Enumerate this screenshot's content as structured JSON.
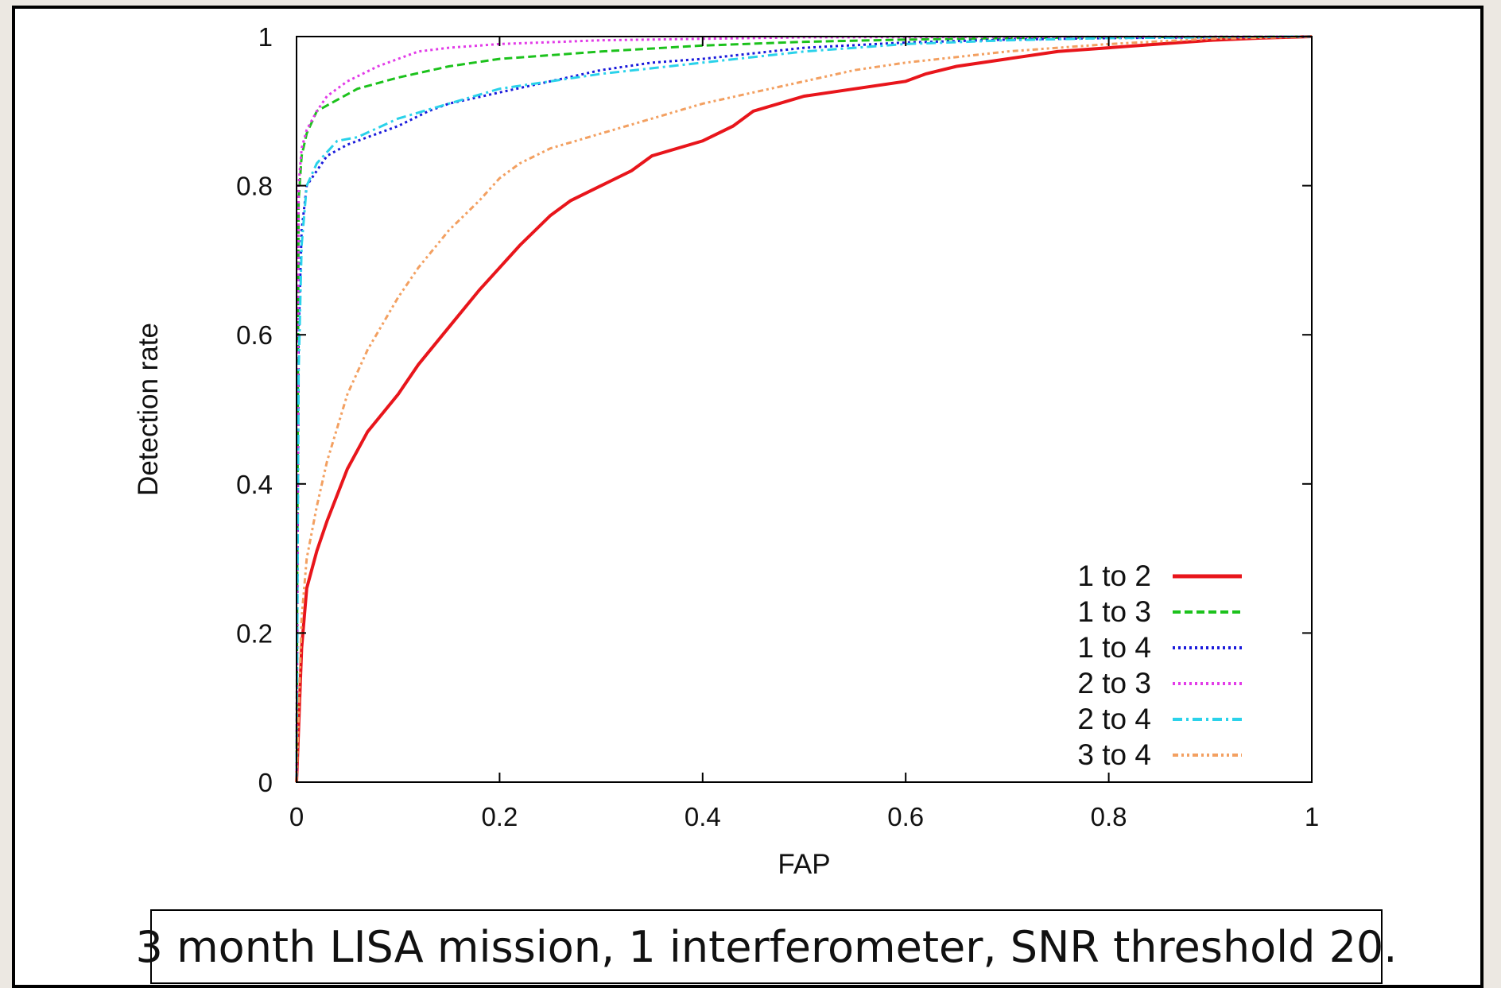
{
  "chart_data": {
    "type": "line",
    "xlabel": "FAP",
    "ylabel": "Detection rate",
    "xlim": [
      0,
      1
    ],
    "ylim": [
      0,
      1
    ],
    "x_ticks": [
      0,
      0.2,
      0.4,
      0.6,
      0.8,
      1
    ],
    "x_tick_labels": [
      "0",
      "0.2",
      "0.4",
      "0.6",
      "0.8",
      "1"
    ],
    "y_ticks": [
      0,
      0.2,
      0.4,
      0.6,
      0.8,
      1
    ],
    "y_tick_labels": [
      "0",
      "0.2",
      "0.4",
      "0.6",
      "0.8",
      "1"
    ],
    "grid": false,
    "legend_position": "bottom-right",
    "series": [
      {
        "name": "1 to 2",
        "color": "#e8151b",
        "dash": "solid",
        "x": [
          0,
          0.005,
          0.01,
          0.02,
          0.03,
          0.05,
          0.07,
          0.1,
          0.12,
          0.15,
          0.18,
          0.2,
          0.22,
          0.25,
          0.27,
          0.3,
          0.33,
          0.35,
          0.4,
          0.43,
          0.45,
          0.5,
          0.55,
          0.6,
          0.62,
          0.65,
          0.7,
          0.75,
          0.8,
          0.85,
          0.9,
          0.95,
          1
        ],
        "y": [
          0,
          0.18,
          0.26,
          0.31,
          0.35,
          0.42,
          0.47,
          0.52,
          0.56,
          0.61,
          0.66,
          0.69,
          0.72,
          0.76,
          0.78,
          0.8,
          0.82,
          0.84,
          0.86,
          0.88,
          0.9,
          0.92,
          0.93,
          0.94,
          0.95,
          0.96,
          0.97,
          0.98,
          0.985,
          0.99,
          0.995,
          0.998,
          1
        ]
      },
      {
        "name": "1 to 3",
        "color": "#1cc21c",
        "dash": "dashed",
        "x": [
          0,
          0.002,
          0.005,
          0.01,
          0.02,
          0.04,
          0.06,
          0.1,
          0.15,
          0.2,
          0.3,
          0.4,
          0.5,
          0.6,
          0.7,
          0.8,
          1
        ],
        "y": [
          0,
          0.78,
          0.84,
          0.87,
          0.9,
          0.915,
          0.93,
          0.945,
          0.96,
          0.97,
          0.98,
          0.988,
          0.993,
          0.996,
          0.998,
          0.999,
          1
        ]
      },
      {
        "name": "1 to 4",
        "color": "#1a1adb",
        "dash": "dotted",
        "x": [
          0,
          0.002,
          0.005,
          0.01,
          0.02,
          0.03,
          0.05,
          0.07,
          0.1,
          0.13,
          0.15,
          0.2,
          0.25,
          0.3,
          0.35,
          0.4,
          0.5,
          0.6,
          0.7,
          0.8,
          1
        ],
        "y": [
          0,
          0.6,
          0.74,
          0.8,
          0.82,
          0.84,
          0.855,
          0.865,
          0.88,
          0.9,
          0.91,
          0.925,
          0.94,
          0.955,
          0.965,
          0.97,
          0.985,
          0.992,
          0.996,
          0.998,
          1
        ]
      },
      {
        "name": "2 to 3",
        "color": "#e23be8",
        "dash": "dotted",
        "x": [
          0,
          0.002,
          0.005,
          0.01,
          0.02,
          0.03,
          0.05,
          0.08,
          0.1,
          0.12,
          0.15,
          0.2,
          0.3,
          0.5,
          1
        ],
        "y": [
          0,
          0.8,
          0.85,
          0.875,
          0.9,
          0.92,
          0.94,
          0.96,
          0.97,
          0.98,
          0.985,
          0.99,
          0.995,
          0.999,
          1
        ]
      },
      {
        "name": "2 to 4",
        "color": "#2ad2ea",
        "dash": "dashdot",
        "x": [
          0,
          0.002,
          0.005,
          0.01,
          0.02,
          0.04,
          0.06,
          0.1,
          0.15,
          0.2,
          0.3,
          0.4,
          0.5,
          0.6,
          0.7,
          0.8,
          1
        ],
        "y": [
          0,
          0.55,
          0.72,
          0.8,
          0.83,
          0.86,
          0.865,
          0.89,
          0.91,
          0.93,
          0.95,
          0.965,
          0.98,
          0.99,
          0.995,
          0.998,
          1
        ]
      },
      {
        "name": "3 to 4",
        "color": "#f3a061",
        "dash": "dashdotdot",
        "x": [
          0,
          0.005,
          0.01,
          0.02,
          0.03,
          0.05,
          0.07,
          0.1,
          0.12,
          0.15,
          0.18,
          0.2,
          0.22,
          0.25,
          0.3,
          0.35,
          0.4,
          0.45,
          0.5,
          0.55,
          0.6,
          0.7,
          0.8,
          0.9,
          1
        ],
        "y": [
          0,
          0.22,
          0.3,
          0.37,
          0.43,
          0.52,
          0.58,
          0.65,
          0.69,
          0.74,
          0.78,
          0.81,
          0.83,
          0.85,
          0.87,
          0.89,
          0.91,
          0.925,
          0.94,
          0.955,
          0.965,
          0.98,
          0.99,
          0.997,
          1
        ]
      }
    ]
  },
  "caption": "3 month LISA mission, 1 interferometer, SNR threshold 20."
}
